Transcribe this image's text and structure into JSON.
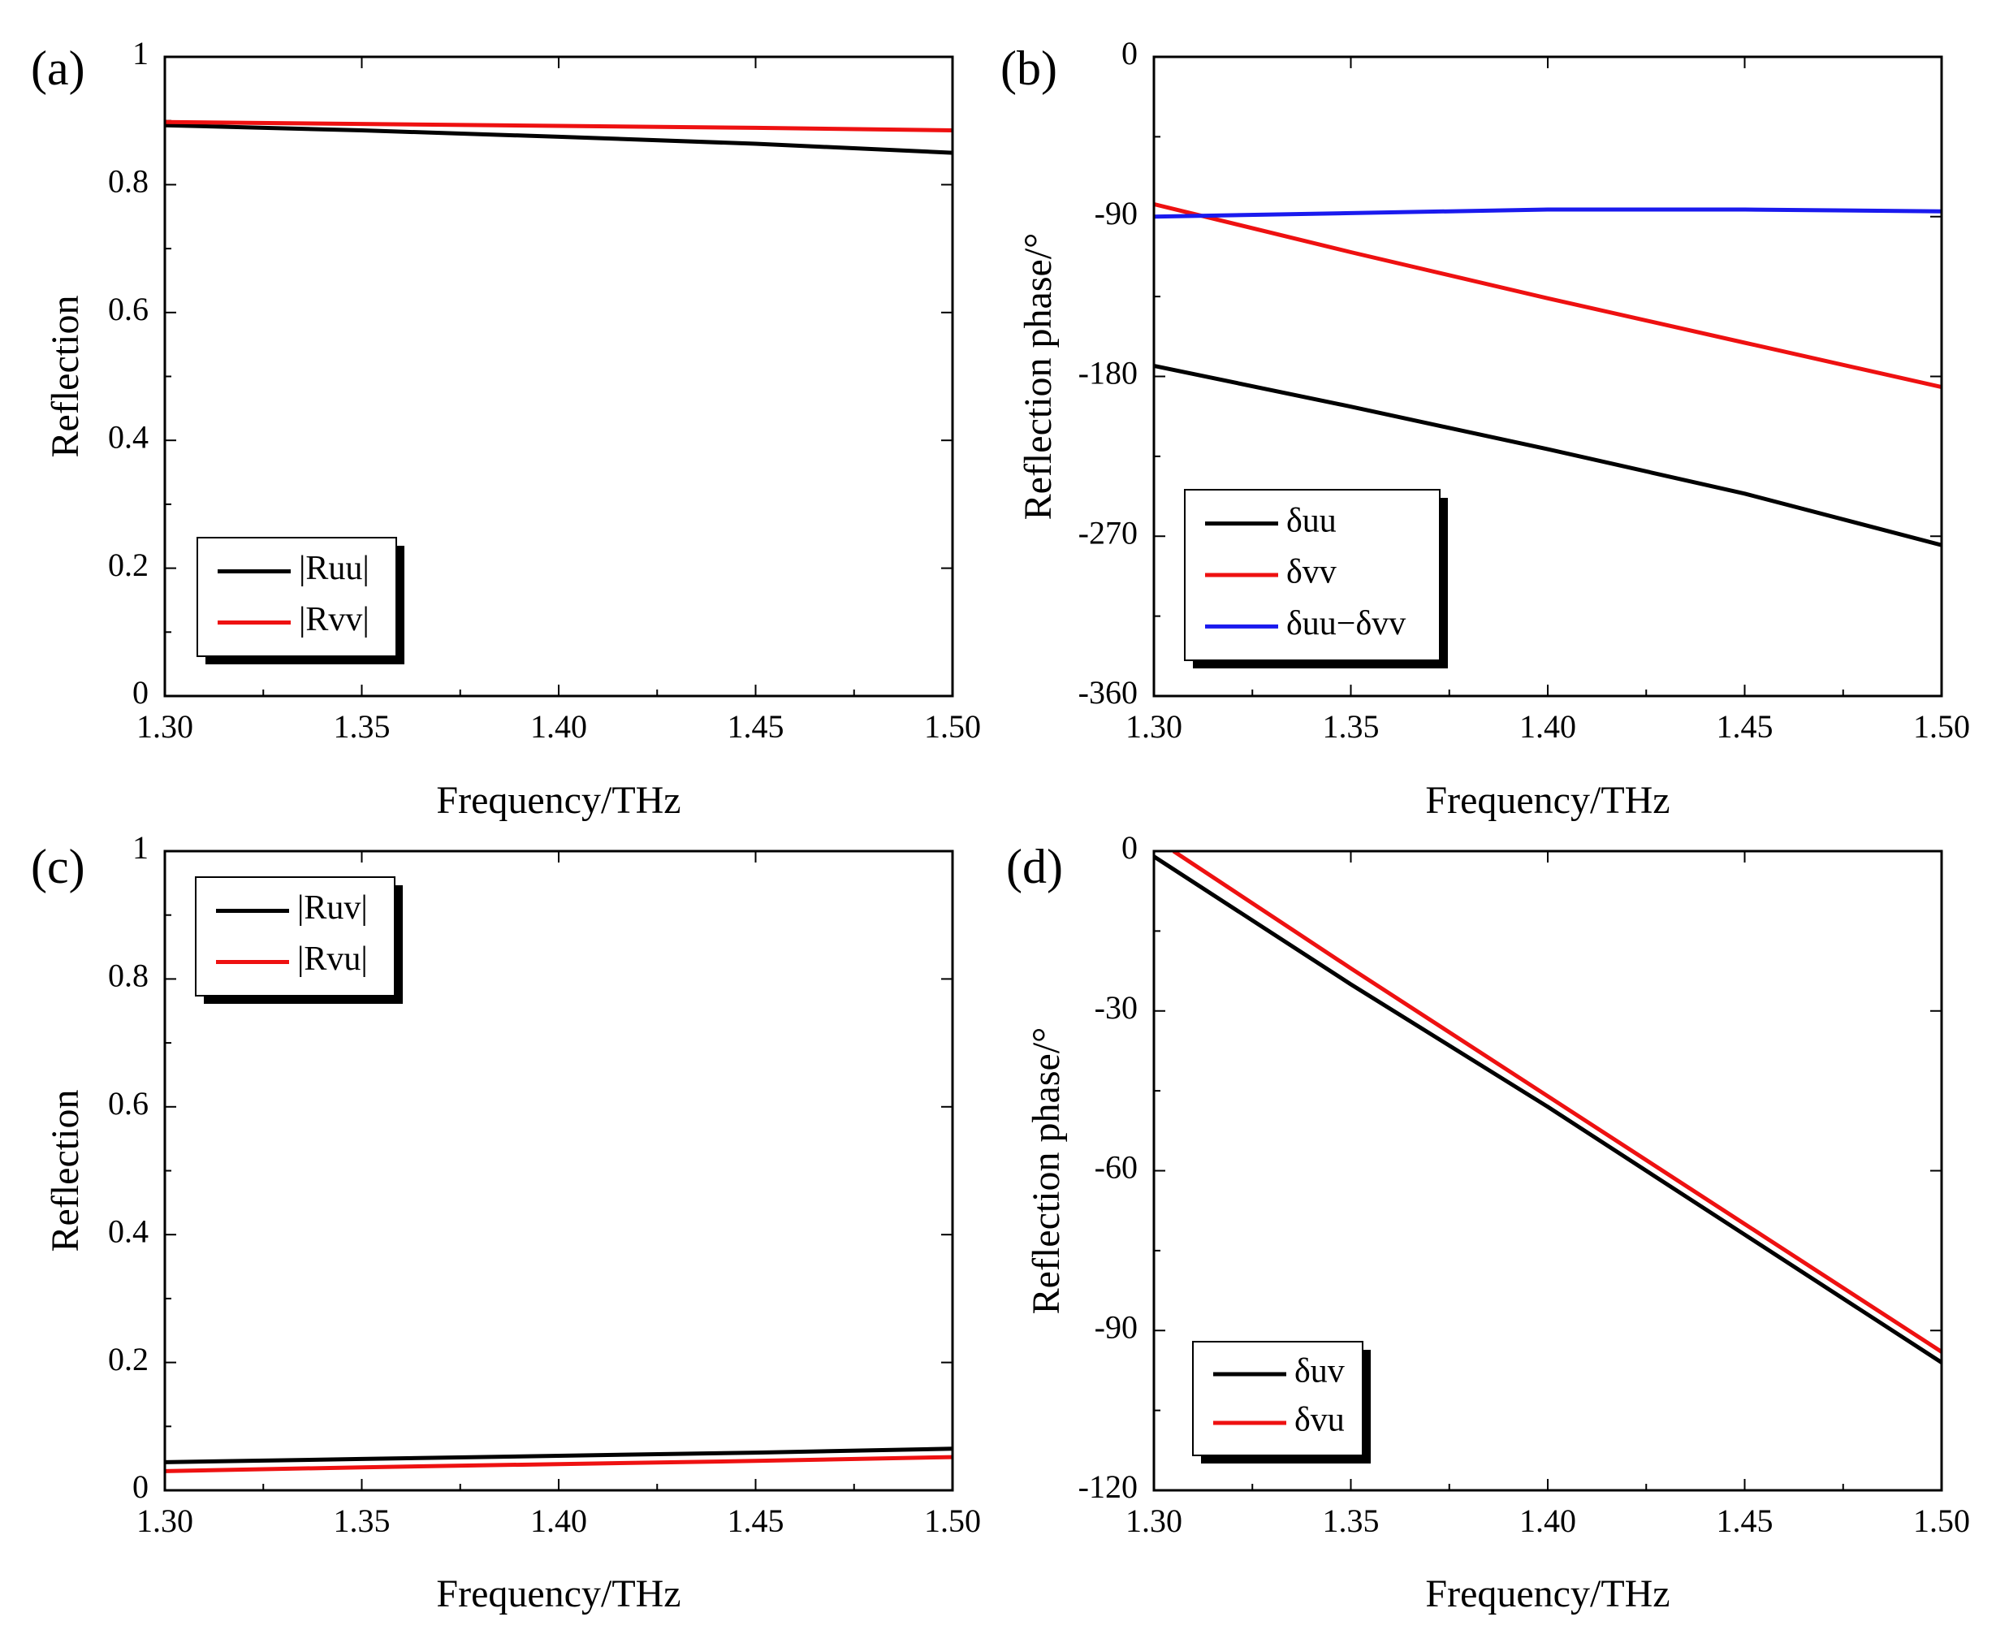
{
  "chart_data": [
    {
      "panel_label": "(a)",
      "type": "line",
      "xlabel": "Frequency/THz",
      "ylabel": "Reflection",
      "xlim": [
        1.3,
        1.5
      ],
      "ylim": [
        0,
        1
      ],
      "x_ticks": [
        1.3,
        1.35,
        1.4,
        1.45,
        1.5
      ],
      "x_tick_labels": [
        "1.30",
        "1.35",
        "1.40",
        "1.45",
        "1.50"
      ],
      "y_ticks": [
        0,
        0.2,
        0.4,
        0.6,
        0.8,
        1
      ],
      "y_tick_labels": [
        "0",
        "0.2",
        "0.4",
        "0.6",
        "0.8",
        "1"
      ],
      "legend_position": "bottom-left",
      "series": [
        {
          "name": "|Ruu|",
          "color": "#000000",
          "x": [
            1.3,
            1.35,
            1.4,
            1.45,
            1.5
          ],
          "y": [
            0.893,
            0.885,
            0.875,
            0.864,
            0.85
          ]
        },
        {
          "name": "|Rvv|",
          "color": "#ee1111",
          "x": [
            1.3,
            1.35,
            1.4,
            1.45,
            1.5
          ],
          "y": [
            0.898,
            0.895,
            0.892,
            0.889,
            0.885
          ]
        }
      ]
    },
    {
      "panel_label": "(b)",
      "type": "line",
      "xlabel": "Frequency/THz",
      "ylabel": "Reflection phase/°",
      "xlim": [
        1.3,
        1.5
      ],
      "ylim": [
        -360,
        0
      ],
      "x_ticks": [
        1.3,
        1.35,
        1.4,
        1.45,
        1.5
      ],
      "x_tick_labels": [
        "1.30",
        "1.35",
        "1.40",
        "1.45",
        "1.50"
      ],
      "y_ticks": [
        -360,
        -270,
        -180,
        -90,
        0
      ],
      "y_tick_labels": [
        "-360",
        "-270",
        "-180",
        "-90",
        "0"
      ],
      "legend_position": "bottom-left",
      "series": [
        {
          "name": "δuu",
          "color": "#000000",
          "x": [
            1.3,
            1.35,
            1.4,
            1.45,
            1.5
          ],
          "y": [
            -174,
            -197,
            -221,
            -246,
            -275
          ]
        },
        {
          "name": "δvv",
          "color": "#ee1111",
          "x": [
            1.3,
            1.35,
            1.4,
            1.45,
            1.5
          ],
          "y": [
            -83,
            -110,
            -136,
            -161,
            -186
          ]
        },
        {
          "name": "δuu−δvv",
          "color": "#1a1aee",
          "x": [
            1.3,
            1.35,
            1.4,
            1.45,
            1.5
          ],
          "y": [
            -90,
            -88,
            -86,
            -86,
            -87
          ]
        }
      ]
    },
    {
      "panel_label": "(c)",
      "type": "line",
      "xlabel": "Frequency/THz",
      "ylabel": "Reflection",
      "xlim": [
        1.3,
        1.5
      ],
      "ylim": [
        0,
        1
      ],
      "x_ticks": [
        1.3,
        1.35,
        1.4,
        1.45,
        1.5
      ],
      "x_tick_labels": [
        "1.30",
        "1.35",
        "1.40",
        "1.45",
        "1.50"
      ],
      "y_ticks": [
        0,
        0.2,
        0.4,
        0.6,
        0.8,
        1
      ],
      "y_tick_labels": [
        "0",
        "0.2",
        "0.4",
        "0.6",
        "0.8",
        "1"
      ],
      "legend_position": "top-left",
      "series": [
        {
          "name": "|Ruv|",
          "color": "#000000",
          "x": [
            1.3,
            1.35,
            1.4,
            1.45,
            1.5
          ],
          "y": [
            0.044,
            0.049,
            0.054,
            0.059,
            0.065
          ]
        },
        {
          "name": "|Rvu|",
          "color": "#ee1111",
          "x": [
            1.3,
            1.35,
            1.4,
            1.45,
            1.5
          ],
          "y": [
            0.03,
            0.036,
            0.041,
            0.046,
            0.052
          ]
        }
      ]
    },
    {
      "panel_label": "(d)",
      "type": "line",
      "xlabel": "Frequency/THz",
      "ylabel": "Reflection phase/°",
      "xlim": [
        1.3,
        1.5
      ],
      "ylim": [
        -120,
        0
      ],
      "x_ticks": [
        1.3,
        1.35,
        1.4,
        1.45,
        1.5
      ],
      "x_tick_labels": [
        "1.30",
        "1.35",
        "1.40",
        "1.45",
        "1.50"
      ],
      "y_ticks": [
        -120,
        -90,
        -60,
        -30,
        0
      ],
      "y_tick_labels": [
        "-120",
        "-90",
        "-60",
        "-30",
        "0"
      ],
      "legend_position": "bottom-left",
      "series": [
        {
          "name": "δuv",
          "color": "#000000",
          "x": [
            1.3,
            1.35,
            1.4,
            1.45,
            1.5
          ],
          "y": [
            -1,
            -25,
            -48,
            -72,
            -96
          ]
        },
        {
          "name": "δvu",
          "color": "#ee1111",
          "x": [
            1.305,
            1.35,
            1.4,
            1.45,
            1.5
          ],
          "y": [
            0,
            -22,
            -46,
            -70,
            -94
          ]
        }
      ]
    }
  ]
}
